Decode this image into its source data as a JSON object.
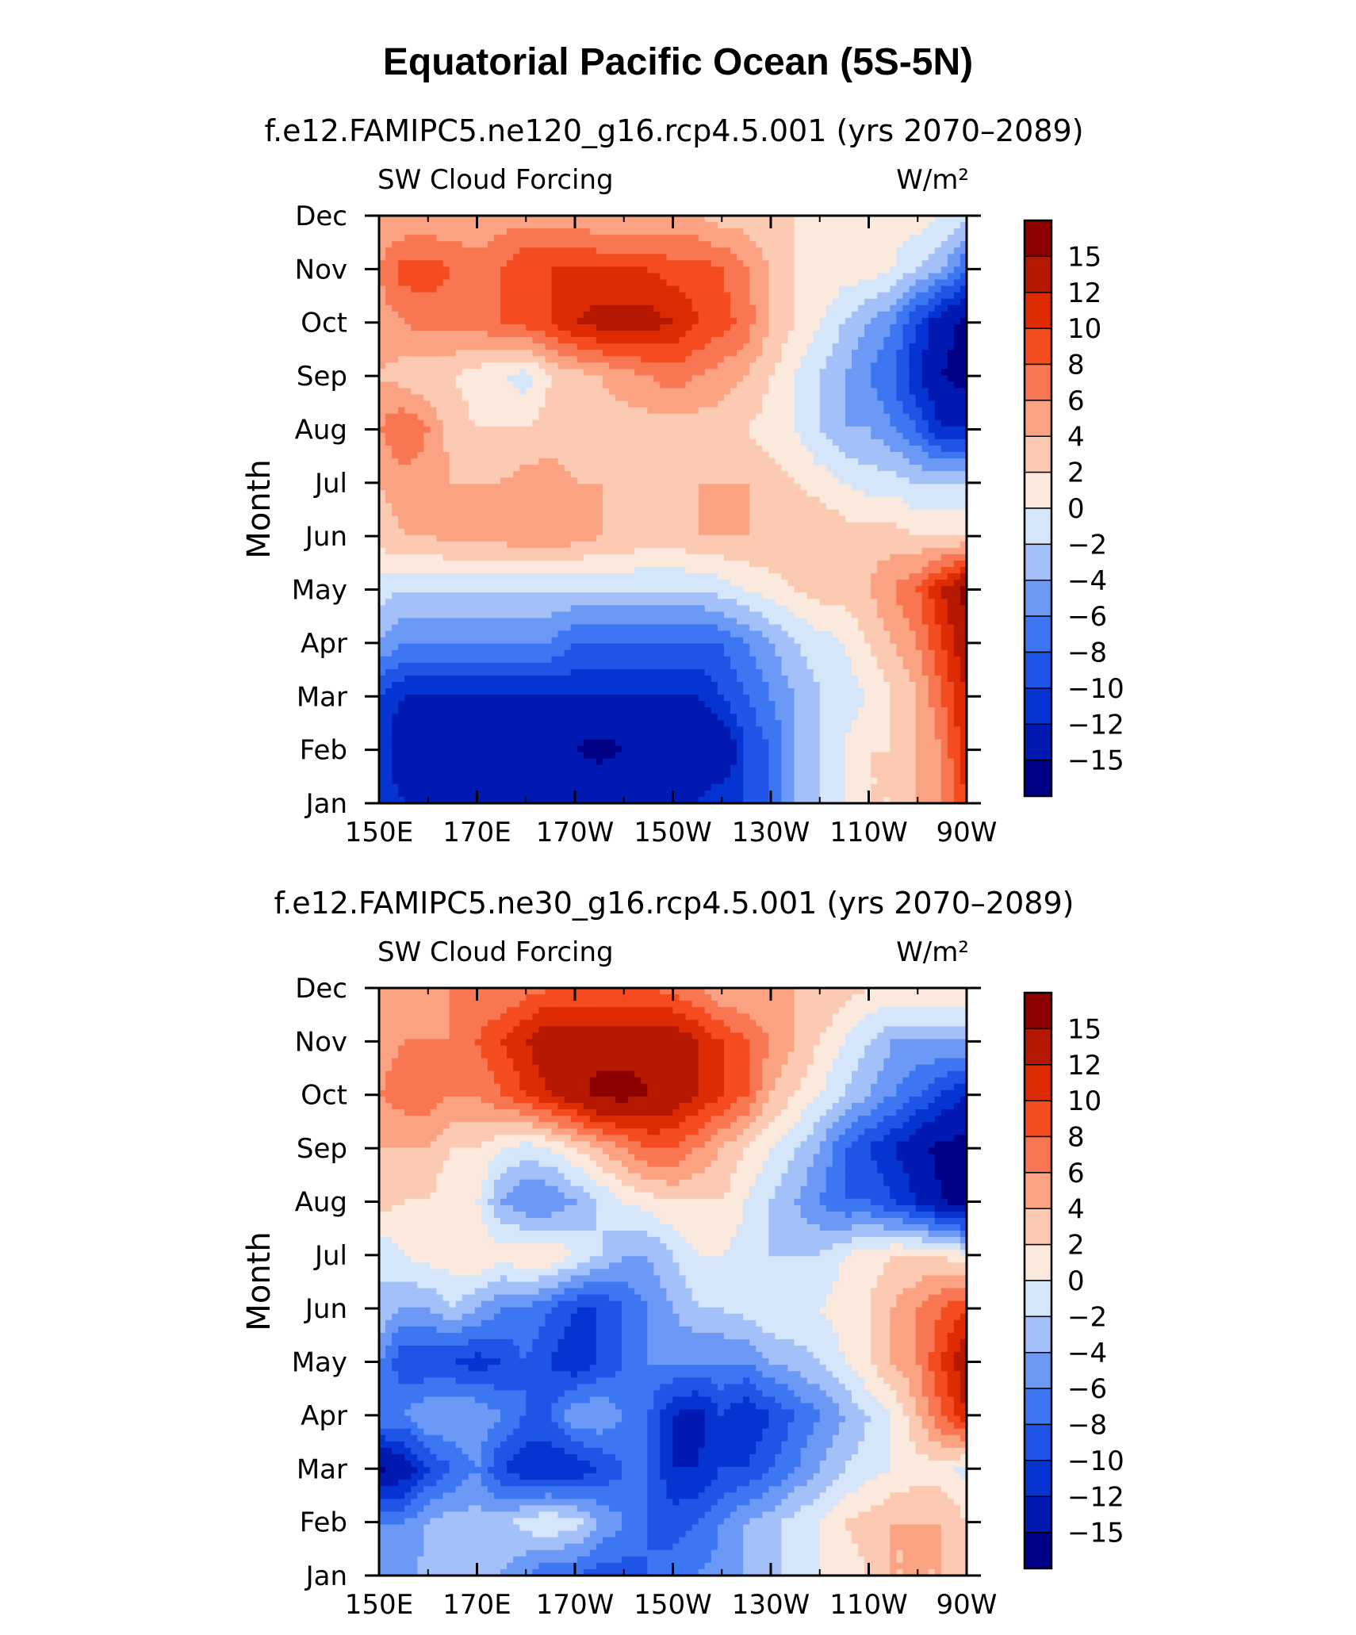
{
  "title": "Equatorial Pacific Ocean (5S-5N)",
  "chart_data": [
    {
      "type": "heatmap",
      "title": "f.e12.FAMIPC5.ne120_g16.rcp4.5.001 (yrs 2070–2089)",
      "left_label": "SW Cloud Forcing",
      "right_label": "W/m²",
      "ylabel": "Month",
      "xlabel": "",
      "x_ticks": [
        "150E",
        "170E",
        "170W",
        "150W",
        "130W",
        "110W",
        "90W"
      ],
      "y_ticks": [
        "Jan",
        "Feb",
        "Mar",
        "Apr",
        "May",
        "Jun",
        "Jul",
        "Aug",
        "Sep",
        "Oct",
        "Nov",
        "Dec"
      ],
      "x": [
        150,
        155,
        160,
        165,
        170,
        175,
        180,
        185,
        190,
        195,
        200,
        205,
        210,
        215,
        220,
        225,
        230,
        235,
        240,
        245,
        250,
        255,
        260,
        265,
        270
      ],
      "y": [
        1,
        2,
        3,
        4,
        5,
        6,
        7,
        8,
        9,
        10,
        11,
        12
      ],
      "z": [
        [
          -10,
          -12,
          -12,
          -12,
          -12,
          -12,
          -12,
          -12,
          -12,
          -12,
          -12,
          -12,
          -12,
          -12,
          -10,
          -10,
          -8,
          -4,
          -2,
          0,
          2,
          2,
          4,
          6,
          10
        ],
        [
          -10,
          -15,
          -15,
          -15,
          -15,
          -15,
          -15,
          -15,
          -15,
          -16,
          -15,
          -15,
          -15,
          -15,
          -15,
          -10,
          -8,
          -4,
          -2,
          0,
          2,
          2,
          4,
          6,
          12
        ],
        [
          -10,
          -12,
          -12,
          -12,
          -12,
          -12,
          -12,
          -12,
          -12,
          -12,
          -12,
          -12,
          -12,
          -12,
          -10,
          -8,
          -6,
          -4,
          -2,
          -1,
          0,
          2,
          4,
          8,
          12
        ],
        [
          -4,
          -6,
          -6,
          -6,
          -6,
          -6,
          -6,
          -6,
          -8,
          -8,
          -8,
          -8,
          -8,
          -8,
          -8,
          -6,
          -4,
          -2,
          -1,
          0,
          2,
          4,
          6,
          10,
          14
        ],
        [
          -1,
          -2,
          -2,
          -2,
          -2,
          -2,
          -2,
          -2,
          -2,
          -2,
          -2,
          -2,
          -2,
          -2,
          -1,
          0,
          1,
          2,
          3,
          3,
          4,
          6,
          8,
          12,
          16
        ],
        [
          3,
          4,
          4,
          5,
          5,
          5,
          6,
          6,
          5,
          4,
          4,
          3,
          3,
          4,
          4,
          4,
          4,
          4,
          4,
          3,
          3,
          3,
          2,
          2,
          2
        ],
        [
          4,
          5,
          5,
          4,
          4,
          4,
          5,
          5,
          4,
          4,
          3,
          3,
          3,
          4,
          4,
          4,
          3,
          2,
          1,
          0,
          -1,
          -1,
          -2,
          -2,
          -2
        ],
        [
          6,
          8,
          6,
          3,
          2,
          2,
          2,
          3,
          3,
          3,
          3,
          3,
          3,
          3,
          3,
          2,
          1,
          0,
          -2,
          -4,
          -4,
          -6,
          -8,
          -12,
          -12
        ],
        [
          4,
          3,
          2,
          2,
          1,
          0,
          -1,
          2,
          3,
          4,
          5,
          6,
          7,
          6,
          5,
          4,
          2,
          0,
          -2,
          -4,
          -6,
          -8,
          -12,
          -15,
          -16
        ],
        [
          5,
          6,
          7,
          7,
          7,
          8,
          9,
          10,
          12,
          13,
          13,
          13,
          12,
          10,
          9,
          7,
          4,
          2,
          0,
          -2,
          -4,
          -6,
          -10,
          -14,
          -16
        ],
        [
          6,
          9,
          9,
          8,
          7,
          8,
          10,
          10,
          10,
          10,
          10,
          10,
          9,
          9,
          8,
          6,
          4,
          2,
          2,
          1,
          1,
          0,
          -2,
          -4,
          -8
        ],
        [
          4,
          4,
          4,
          4,
          4,
          5,
          5,
          5,
          5,
          4,
          4,
          4,
          4,
          4,
          3,
          3,
          2,
          2,
          1,
          1,
          1,
          1,
          1,
          0,
          -1
        ]
      ],
      "contour_levels": [
        -15,
        -12,
        -10,
        -8,
        -6,
        -4,
        -2,
        0,
        2,
        4,
        6,
        8,
        10,
        12,
        15
      ],
      "colorbar_labels": [
        "15",
        "12",
        "10",
        "8",
        "6",
        "4",
        "2",
        "0",
        "−2",
        "−4",
        "−6",
        "−8",
        "−10",
        "−12",
        "−15"
      ],
      "colors": [
        "#000086",
        "#001ab1",
        "#0534d3",
        "#1f55e6",
        "#3c76f2",
        "#6c98f6",
        "#a4c0f8",
        "#d6e6fa",
        "#fce9de",
        "#fcc9b2",
        "#fba283",
        "#f87752",
        "#f44b1f",
        "#dd2b04",
        "#b41800",
        "#8c0000"
      ]
    },
    {
      "type": "heatmap",
      "title": "f.e12.FAMIPC5.ne30_g16.rcp4.5.001 (yrs 2070–2089)",
      "left_label": "SW Cloud Forcing",
      "right_label": "W/m²",
      "ylabel": "Month",
      "xlabel": "",
      "x_ticks": [
        "150E",
        "170E",
        "170W",
        "150W",
        "130W",
        "110W",
        "90W"
      ],
      "y_ticks": [
        "Jan",
        "Feb",
        "Mar",
        "Apr",
        "May",
        "Jun",
        "Jul",
        "Aug",
        "Sep",
        "Oct",
        "Nov",
        "Dec"
      ],
      "x": [
        150,
        155,
        160,
        165,
        170,
        175,
        180,
        185,
        190,
        195,
        200,
        205,
        210,
        215,
        220,
        225,
        230,
        235,
        240,
        245,
        250,
        255,
        260,
        265,
        270
      ],
      "y": [
        1,
        2,
        3,
        4,
        5,
        6,
        7,
        8,
        9,
        10,
        11,
        12
      ],
      "z": [
        [
          -4,
          -5,
          -3,
          -3,
          -2,
          -4,
          -6,
          -8,
          -8,
          -9,
          -9,
          -8,
          -7,
          -6,
          -5,
          -4,
          -3,
          -1,
          0,
          1,
          2,
          4,
          4,
          4,
          2
        ],
        [
          -6,
          -6,
          -4,
          -3,
          -3,
          -3,
          -1,
          0,
          -1,
          -4,
          -6,
          -8,
          -9,
          -8,
          -6,
          -4,
          -3,
          -1,
          0,
          2,
          3,
          4,
          4,
          4,
          2
        ],
        [
          -16,
          -14,
          -10,
          -8,
          -6,
          -10,
          -12,
          -12,
          -12,
          -10,
          -8,
          -8,
          -12,
          -12,
          -10,
          -10,
          -8,
          -6,
          -4,
          -2,
          -1,
          0,
          1,
          1,
          -1
        ],
        [
          -6,
          -6,
          -4,
          -4,
          -4,
          -6,
          -8,
          -8,
          -4,
          -4,
          -6,
          -8,
          -12,
          -13,
          -10,
          -12,
          -10,
          -8,
          -6,
          -4,
          -2,
          0,
          4,
          8,
          12
        ],
        [
          -6,
          -10,
          -10,
          -10,
          -11,
          -10,
          -8,
          -10,
          -12,
          -10,
          -8,
          -6,
          -6,
          -6,
          -6,
          -6,
          -4,
          -3,
          -2,
          0,
          2,
          4,
          6,
          10,
          14
        ],
        [
          -2,
          -4,
          -4,
          -2,
          -4,
          -6,
          -6,
          -8,
          -10,
          -10,
          -8,
          -6,
          -4,
          -2,
          -2,
          -1,
          0,
          0,
          0,
          1,
          2,
          4,
          6,
          8,
          10
        ],
        [
          -2,
          0,
          1,
          1,
          2,
          1,
          2,
          2,
          0,
          -2,
          -4,
          -4,
          -2,
          0,
          0,
          -1,
          -2,
          -2,
          -2,
          0,
          1,
          2,
          2,
          2,
          0
        ],
        [
          3,
          2,
          2,
          0,
          0,
          -4,
          -6,
          -6,
          -4,
          -2,
          0,
          1,
          2,
          2,
          2,
          0,
          -2,
          -4,
          -6,
          -8,
          -8,
          -10,
          -12,
          -15,
          -16
        ],
        [
          4,
          4,
          4,
          2,
          2,
          0,
          -1,
          0,
          2,
          4,
          6,
          8,
          8,
          6,
          4,
          2,
          0,
          -2,
          -4,
          -8,
          -10,
          -12,
          -14,
          -16,
          -16
        ],
        [
          6,
          7,
          7,
          6,
          6,
          8,
          10,
          12,
          14,
          16,
          16,
          15,
          14,
          12,
          10,
          8,
          4,
          2,
          0,
          -2,
          -4,
          -6,
          -8,
          -10,
          -12
        ],
        [
          5,
          6,
          6,
          6,
          8,
          10,
          12,
          14,
          14,
          14,
          14,
          14,
          14,
          12,
          10,
          8,
          6,
          4,
          2,
          0,
          -2,
          -4,
          -4,
          -4,
          -4
        ],
        [
          4,
          4,
          5,
          6,
          6,
          6,
          7,
          8,
          8,
          8,
          8,
          8,
          7,
          6,
          4,
          4,
          4,
          4,
          4,
          3,
          2,
          2,
          2,
          2,
          2
        ]
      ],
      "contour_levels": [
        -15,
        -12,
        -10,
        -8,
        -6,
        -4,
        -2,
        0,
        2,
        4,
        6,
        8,
        10,
        12,
        15
      ],
      "colorbar_labels": [
        "15",
        "12",
        "10",
        "8",
        "6",
        "4",
        "2",
        "0",
        "−2",
        "−4",
        "−6",
        "−8",
        "−10",
        "−12",
        "−15"
      ],
      "colors": [
        "#000086",
        "#001ab1",
        "#0534d3",
        "#1f55e6",
        "#3c76f2",
        "#6c98f6",
        "#a4c0f8",
        "#d6e6fa",
        "#fce9de",
        "#fcc9b2",
        "#fba283",
        "#f87752",
        "#f44b1f",
        "#dd2b04",
        "#b41800",
        "#8c0000"
      ]
    }
  ]
}
